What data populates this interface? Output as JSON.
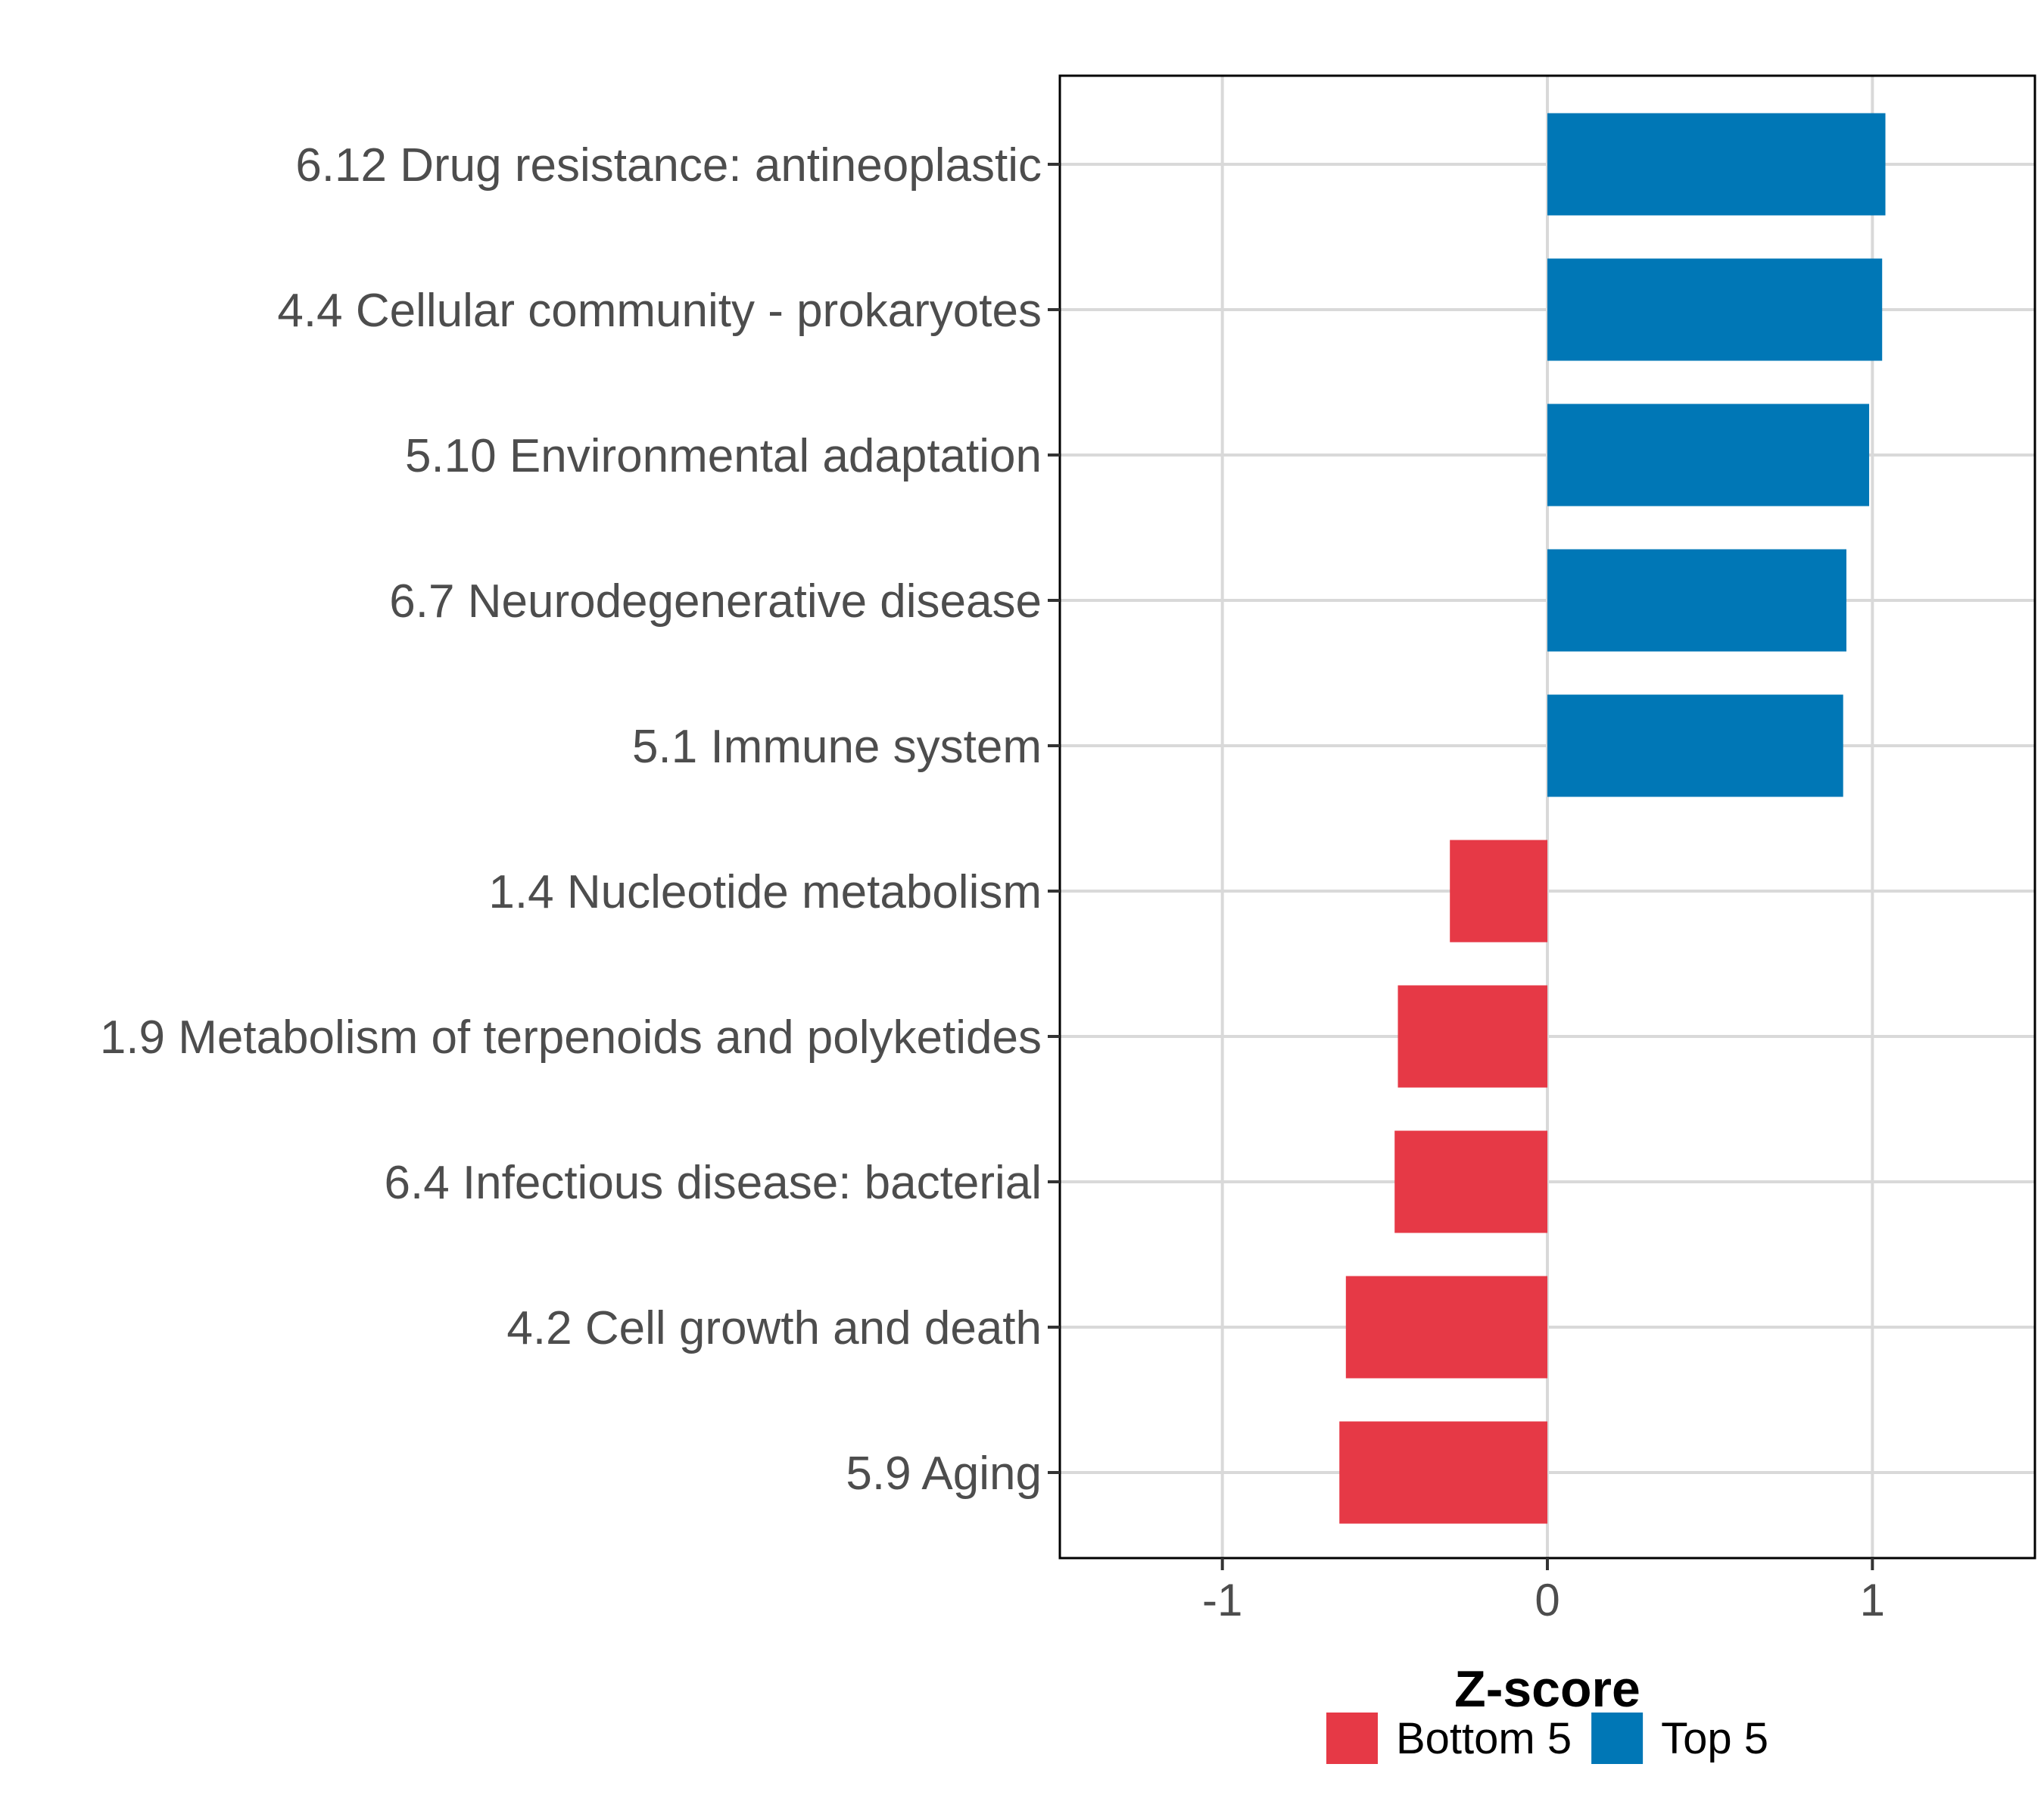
{
  "chart_data": {
    "type": "bar",
    "orientation": "horizontal",
    "xlabel": "Z-score",
    "xlim": [
      -1.5,
      1.5
    ],
    "xticks": [
      -1,
      0,
      1
    ],
    "xtick_labels": [
      "-1",
      "0",
      "1"
    ],
    "grid": true,
    "legend_position": "bottom",
    "categories": [
      "6.12 Drug resistance: antineoplastic",
      "4.4 Cellular community - prokaryotes",
      "5.10 Environmental adaptation",
      "6.7 Neurodegenerative disease",
      "5.1 Immune system",
      "1.4 Nucleotide metabolism",
      "1.9 Metabolism of terpenoids and polyketides",
      "6.4 Infectious disease: bacterial",
      "4.2 Cell growth and death",
      "5.9 Aging"
    ],
    "values": [
      1.04,
      1.03,
      0.99,
      0.92,
      0.91,
      -0.3,
      -0.46,
      -0.47,
      -0.62,
      -0.64
    ],
    "groups": [
      "Top 5",
      "Top 5",
      "Top 5",
      "Top 5",
      "Top 5",
      "Bottom 5",
      "Bottom 5",
      "Bottom 5",
      "Bottom 5",
      "Bottom 5"
    ],
    "legend": [
      {
        "label": "Bottom 5",
        "color": "#e63946"
      },
      {
        "label": "Top 5",
        "color": "#0077b6"
      }
    ]
  },
  "colors": {
    "grid": "#d9d9d9",
    "panel_border": "#000000",
    "tick": "#333333"
  }
}
